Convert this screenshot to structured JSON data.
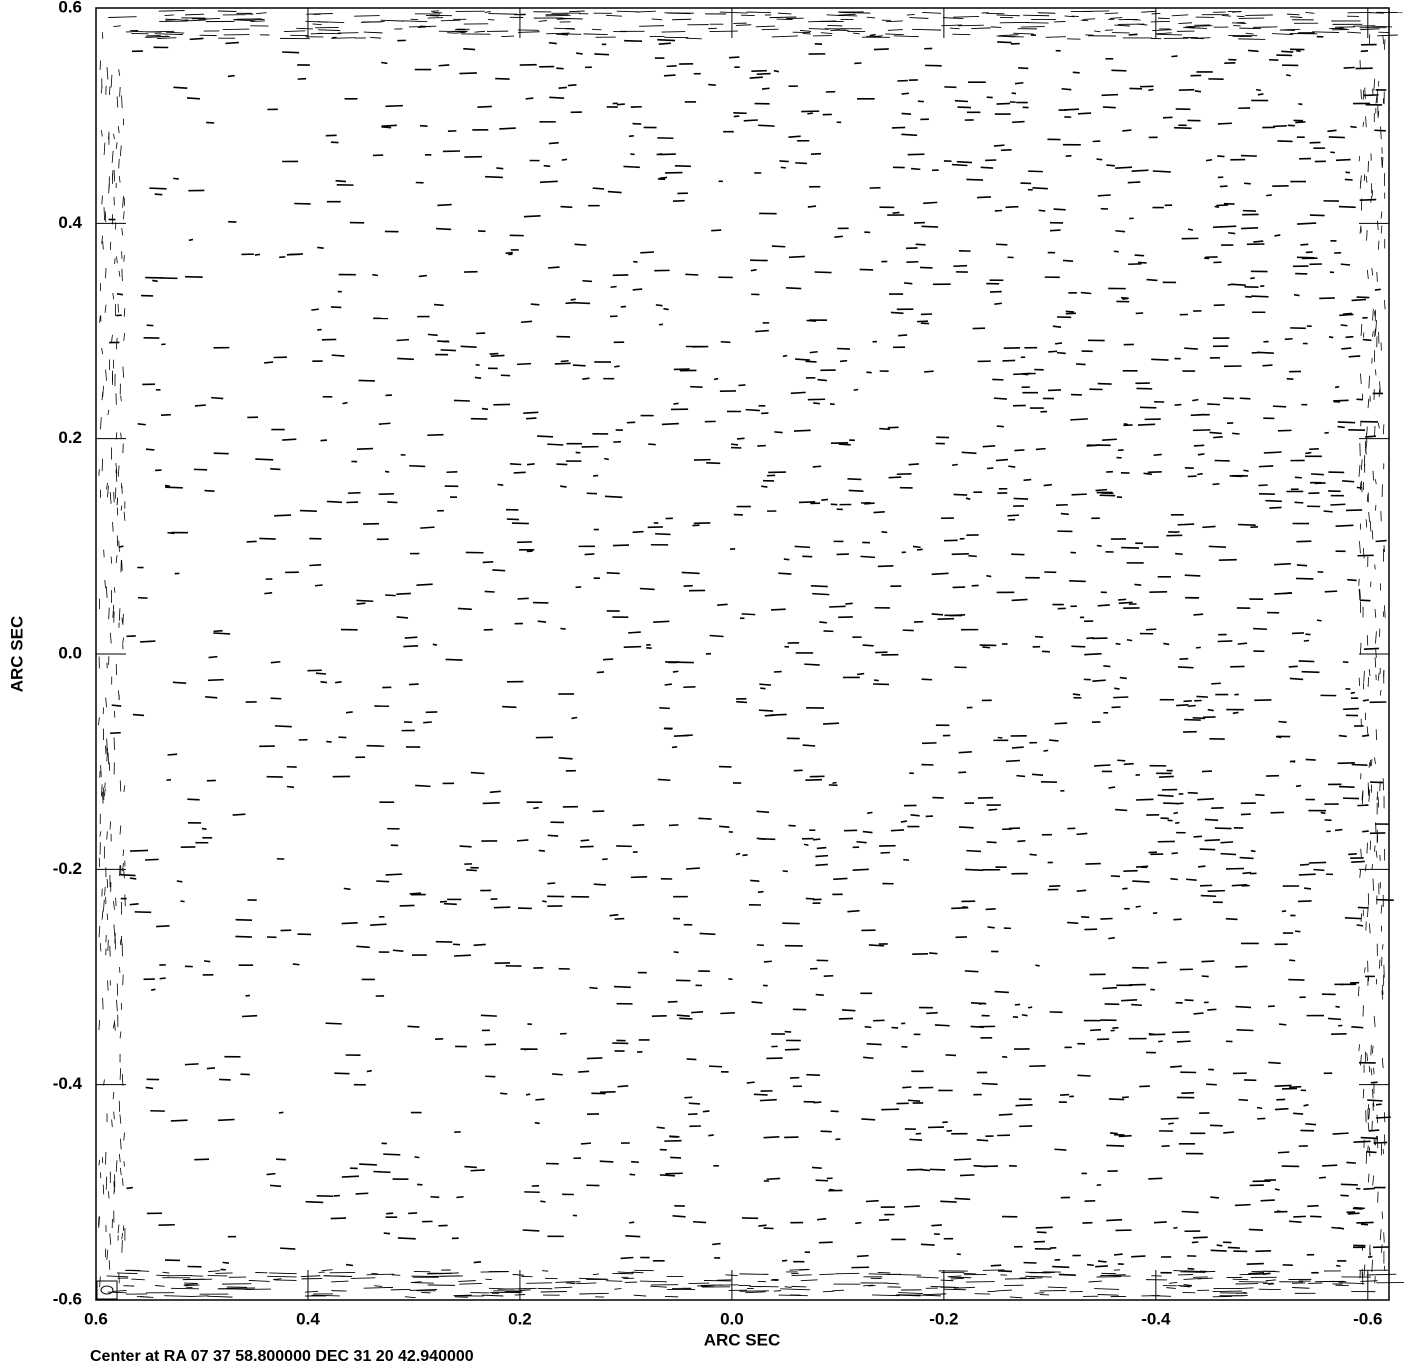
{
  "chart_data": {
    "type": "contour",
    "x_label": "ARC SEC",
    "y_label": "ARC SEC",
    "footer": "Center at RA 07 37 58.800000 DEC 31 20 42.940000",
    "xlim": [
      0.6,
      -0.62
    ],
    "ylim": [
      -0.6,
      0.6
    ],
    "xticks": [
      0.6,
      0.4,
      0.2,
      {
        "value": 0,
        "label": "0.0"
      },
      -0.2,
      -0.4,
      -0.6
    ],
    "yticks": [
      0.6,
      0.4,
      0.2,
      {
        "value": 0,
        "label": "0.0"
      },
      -0.2,
      -0.4,
      -0.6
    ],
    "color": "#000000"
  }
}
